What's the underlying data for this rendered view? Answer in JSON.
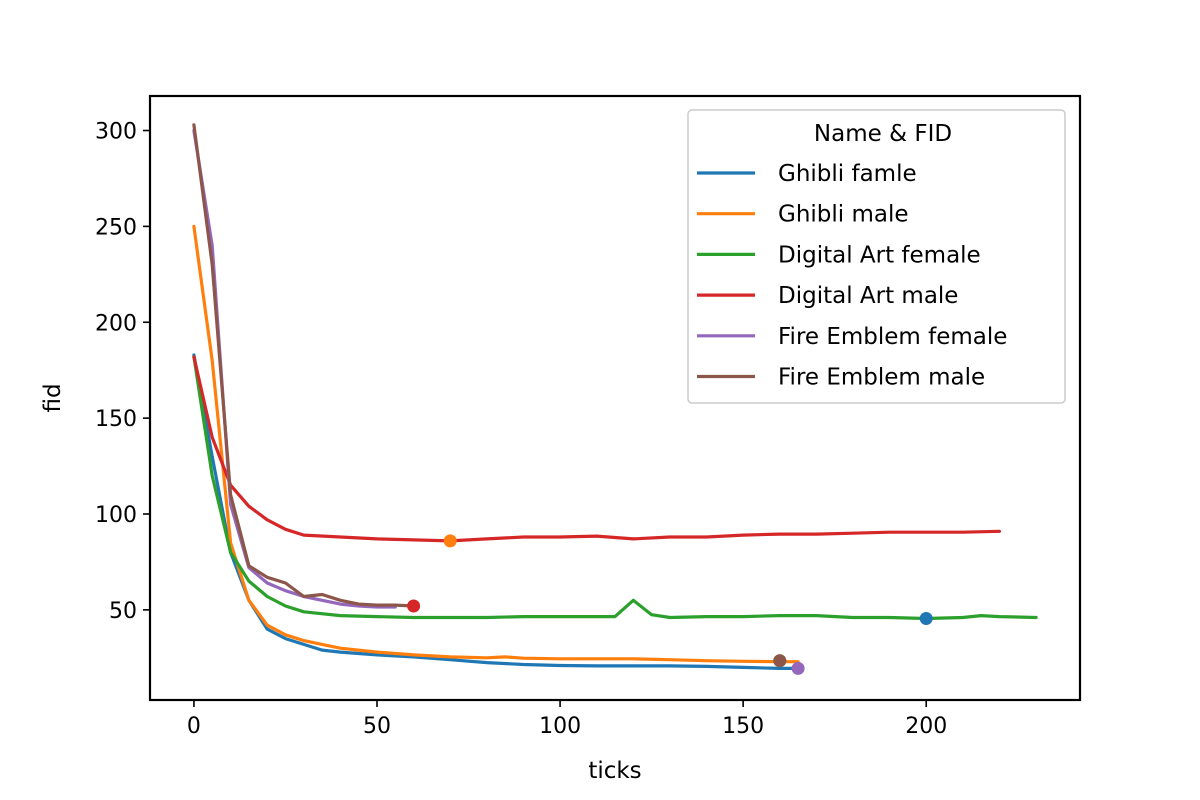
{
  "chart_data": {
    "type": "line",
    "title": "",
    "xlabel": "ticks",
    "ylabel": "fid",
    "xlim": [
      -12,
      242
    ],
    "ylim": [
      3,
      318
    ],
    "xticks": [
      0,
      50,
      100,
      150,
      200
    ],
    "yticks": [
      50,
      100,
      150,
      200,
      250,
      300
    ],
    "grid": false,
    "legend": {
      "title": "Name & FID",
      "placement": "top-right"
    },
    "series": [
      {
        "name": "Ghibli famle",
        "color": "#1f77b4",
        "x": [
          0,
          5,
          10,
          15,
          20,
          25,
          30,
          35,
          40,
          50,
          60,
          70,
          80,
          90,
          100,
          110,
          120,
          130,
          140,
          150,
          160,
          165
        ],
        "y": [
          183,
          130,
          80,
          55,
          40,
          35,
          32,
          29,
          28,
          26.5,
          25.5,
          24,
          22.5,
          21.5,
          21,
          20.8,
          20.8,
          20.8,
          20.5,
          20,
          19.5,
          19.5
        ],
        "marker": {
          "x": 200,
          "y": 45.5,
          "color": "#1f77b4"
        }
      },
      {
        "name": "Ghibli male",
        "color": "#ff7f0e",
        "x": [
          0,
          5,
          10,
          15,
          20,
          25,
          30,
          35,
          40,
          50,
          60,
          70,
          80,
          85,
          90,
          100,
          110,
          120,
          130,
          140,
          150,
          160,
          165
        ],
        "y": [
          250,
          180,
          85,
          55,
          42,
          37,
          34,
          32,
          30,
          28,
          26.5,
          25.5,
          25,
          25.5,
          24.8,
          24.5,
          24.5,
          24.5,
          24,
          23.5,
          23.2,
          23,
          23
        ],
        "marker": {
          "x": 70,
          "y": 86,
          "color": "#ff7f0e"
        }
      },
      {
        "name": "Digital Art female",
        "color": "#2ca02c",
        "x": [
          0,
          5,
          10,
          15,
          20,
          25,
          30,
          40,
          50,
          60,
          70,
          80,
          90,
          100,
          110,
          115,
          120,
          125,
          130,
          140,
          150,
          160,
          170,
          180,
          190,
          200,
          210,
          215,
          220,
          230
        ],
        "y": [
          182,
          120,
          80,
          65,
          57,
          52,
          49,
          47,
          46.5,
          46,
          46,
          46,
          46.5,
          46.5,
          46.5,
          46.5,
          55,
          47.5,
          46,
          46.5,
          46.5,
          47,
          47,
          46,
          46,
          45.5,
          46,
          47,
          46.5,
          46
        ],
        "marker": {
          "x": 160,
          "y": 23.5,
          "color": "#2ca02c"
        }
      },
      {
        "name": "Digital Art male",
        "color": "#d62728",
        "x": [
          0,
          5,
          10,
          15,
          20,
          25,
          30,
          40,
          50,
          60,
          70,
          80,
          90,
          100,
          110,
          120,
          130,
          140,
          150,
          160,
          170,
          180,
          190,
          200,
          210,
          220
        ],
        "y": [
          182,
          140,
          115,
          104,
          97,
          92,
          89,
          88,
          87,
          86.5,
          86,
          87,
          88,
          88,
          88.5,
          87,
          88,
          88,
          89,
          89.5,
          89.5,
          90,
          90.5,
          90.5,
          90.5,
          91
        ],
        "marker": {
          "x": 60,
          "y": 52,
          "color": "#d62728"
        }
      },
      {
        "name": "Fire Emblem female",
        "color": "#9467bd",
        "x": [
          0,
          5,
          10,
          15,
          20,
          25,
          30,
          35,
          40,
          45,
          50,
          55
        ],
        "y": [
          300,
          240,
          105,
          72,
          64,
          60,
          57,
          55,
          53,
          52,
          51.5,
          51.5
        ],
        "marker": {
          "x": 165,
          "y": 19.5,
          "color": "#9467bd"
        }
      },
      {
        "name": "Fire Emblem male",
        "color": "#8c564b",
        "x": [
          0,
          5,
          10,
          15,
          20,
          25,
          30,
          35,
          40,
          45,
          50,
          55,
          60
        ],
        "y": [
          303,
          230,
          110,
          73,
          67,
          64,
          57,
          58,
          55,
          53,
          52.5,
          52.5,
          52
        ],
        "marker": {
          "x": 160,
          "y": 23.5,
          "color": "#8c564b"
        }
      }
    ]
  }
}
